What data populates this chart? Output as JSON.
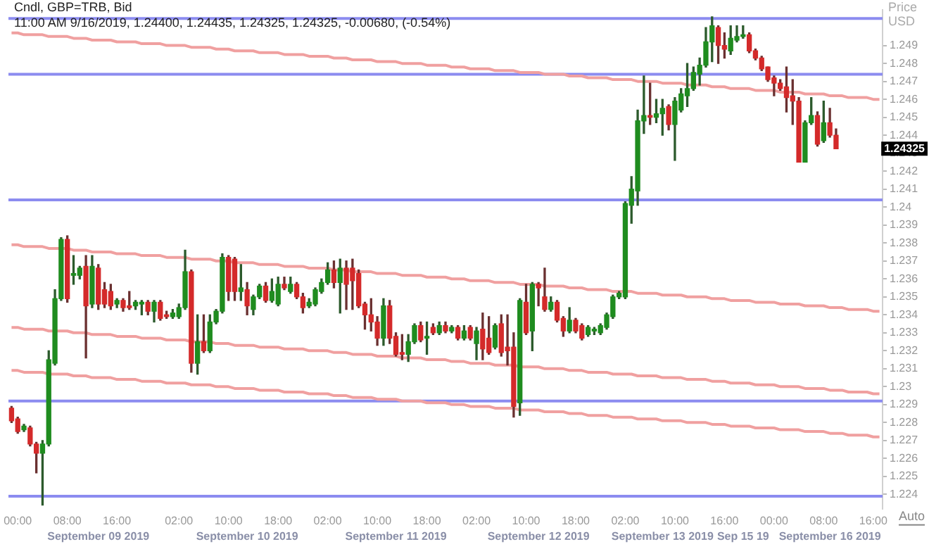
{
  "chart_data": {
    "type": "candlestick",
    "title": "Cndl, GBP=TRB, Bid",
    "subtitle": "11:00 AM 9/16/2019, 1.24400, 1.24435, 1.24325, 1.24325, -0.00680, (-0.54%)",
    "ylabel": "Price USD",
    "categories": [
      null,
      "00:00",
      null,
      null,
      null,
      null,
      null,
      null,
      null,
      "08:00",
      null,
      null,
      null,
      null,
      null,
      null,
      null,
      "16:00",
      null,
      null,
      null,
      null,
      null,
      null,
      null,
      null,
      null,
      "02:00",
      null,
      null,
      null,
      null,
      null,
      null,
      null,
      "10:00",
      null,
      null,
      null,
      null,
      null,
      null,
      null,
      "18:00",
      null,
      null,
      null,
      null,
      null,
      null,
      null,
      "02:00",
      null,
      null,
      null,
      null,
      null,
      null,
      null,
      "10:00",
      null,
      null,
      null,
      null,
      null,
      null,
      null,
      "18:00",
      null,
      null,
      null,
      null,
      null,
      null,
      null,
      "02:00",
      null,
      null,
      null,
      null,
      null,
      null,
      null,
      "10:00",
      null,
      null,
      null,
      null,
      null,
      null,
      null,
      "18:00",
      null,
      null,
      null,
      null,
      null,
      null,
      null,
      "02:00",
      null,
      null,
      null,
      null,
      null,
      null,
      null,
      "10:00",
      null,
      null,
      null,
      null,
      null,
      null,
      null,
      "16:00",
      null,
      null,
      null,
      null,
      null,
      null,
      null,
      "00:00",
      null,
      null,
      null,
      null,
      null,
      null,
      null,
      "08:00",
      null,
      null,
      null,
      null,
      null,
      null,
      null,
      "16:00",
      null
    ],
    "ohlc": [
      [
        1.2288,
        1.2289,
        1.228,
        1.2281
      ],
      [
        1.2282,
        1.2283,
        1.2274,
        1.2275
      ],
      [
        1.2276,
        1.2279,
        1.2275,
        1.2278
      ],
      [
        1.2277,
        1.2278,
        1.2267,
        1.2268
      ],
      [
        1.2268,
        1.2269,
        1.2252,
        1.2263
      ],
      [
        1.2263,
        1.227,
        1.2234,
        1.2268
      ],
      [
        1.2268,
        1.232,
        1.2267,
        1.2315
      ],
      [
        1.2313,
        1.2354,
        1.2312,
        1.2349
      ],
      [
        1.2349,
        1.2383,
        1.2348,
        1.2382
      ],
      [
        1.2382,
        1.2384,
        1.2347,
        1.2349
      ],
      [
        1.2362,
        1.2373,
        1.2357,
        1.2363
      ],
      [
        1.2362,
        1.2367,
        1.236,
        1.2366
      ],
      [
        1.2367,
        1.2373,
        1.2316,
        1.2345
      ],
      [
        1.2346,
        1.2373,
        1.2344,
        1.2367
      ],
      [
        1.2366,
        1.2368,
        1.2343,
        1.2346
      ],
      [
        1.2354,
        1.2358,
        1.2344,
        1.2346
      ],
      [
        1.2353,
        1.2357,
        1.2343,
        1.2345
      ],
      [
        1.2346,
        1.2349,
        1.2344,
        1.2348
      ],
      [
        1.2348,
        1.2349,
        1.2342,
        1.2344
      ],
      [
        1.2345,
        1.2353,
        1.2343,
        1.2344
      ],
      [
        1.2345,
        1.2348,
        1.2343,
        1.2347
      ],
      [
        1.2346,
        1.2348,
        1.234,
        1.2347
      ],
      [
        1.2347,
        1.2348,
        1.234,
        1.2342
      ],
      [
        1.2342,
        1.2348,
        1.2336,
        1.2347
      ],
      [
        1.2347,
        1.2348,
        1.2337,
        1.2338
      ],
      [
        1.234,
        1.2342,
        1.2338,
        1.2339
      ],
      [
        1.2339,
        1.2343,
        1.2338,
        1.2341
      ],
      [
        1.2339,
        1.2346,
        1.2338,
        1.2344
      ],
      [
        1.2344,
        1.2376,
        1.2343,
        1.2364
      ],
      [
        1.2364,
        1.2365,
        1.2308,
        1.2313
      ],
      [
        1.2313,
        1.234,
        1.2307,
        1.2325
      ],
      [
        1.2325,
        1.234,
        1.2319,
        1.232
      ],
      [
        1.232,
        1.234,
        1.2319,
        1.2336
      ],
      [
        1.2336,
        1.2343,
        1.2335,
        1.2342
      ],
      [
        1.2342,
        1.2374,
        1.2341,
        1.2372
      ],
      [
        1.2372,
        1.2373,
        1.2348,
        1.2353
      ],
      [
        1.2371,
        1.2372,
        1.2348,
        1.2353
      ],
      [
        1.2353,
        1.2368,
        1.2348,
        1.2355
      ],
      [
        1.2354,
        1.2358,
        1.234,
        1.2345
      ],
      [
        1.2343,
        1.2351,
        1.234,
        1.235
      ],
      [
        1.235,
        1.2357,
        1.2349,
        1.2356
      ],
      [
        1.2356,
        1.2358,
        1.2347,
        1.2348
      ],
      [
        1.2348,
        1.236,
        1.2347,
        1.2353
      ],
      [
        1.2346,
        1.2361,
        1.2345,
        1.2357
      ],
      [
        1.2357,
        1.2361,
        1.2354,
        1.2355
      ],
      [
        1.2353,
        1.2361,
        1.2352,
        1.2357
      ],
      [
        1.2357,
        1.2358,
        1.2349,
        1.235
      ],
      [
        1.235,
        1.2352,
        1.2341,
        1.2344
      ],
      [
        1.2345,
        1.2349,
        1.2344,
        1.2347
      ],
      [
        1.2346,
        1.2355,
        1.2345,
        1.2354
      ],
      [
        1.2353,
        1.236,
        1.2352,
        1.2358
      ],
      [
        1.2358,
        1.2369,
        1.2357,
        1.2365
      ],
      [
        1.2365,
        1.237,
        1.2355,
        1.2358
      ],
      [
        1.2358,
        1.2371,
        1.2341,
        1.2366
      ],
      [
        1.2366,
        1.237,
        1.2343,
        1.2357
      ],
      [
        1.2366,
        1.2371,
        1.2343,
        1.2359
      ],
      [
        1.2363,
        1.2365,
        1.2344,
        1.2345
      ],
      [
        1.2346,
        1.2347,
        1.2332,
        1.234
      ],
      [
        1.234,
        1.2349,
        1.2331,
        1.2336
      ],
      [
        1.2336,
        1.2339,
        1.2323,
        1.2327
      ],
      [
        1.2327,
        1.2349,
        1.2323,
        1.2345
      ],
      [
        1.2345,
        1.2348,
        1.2324,
        1.2327
      ],
      [
        1.2328,
        1.233,
        1.2317,
        1.2318
      ],
      [
        1.2319,
        1.2329,
        1.2315,
        1.2318
      ],
      [
        1.2318,
        1.2329,
        1.2314,
        1.2325
      ],
      [
        1.2325,
        1.2335,
        1.2324,
        1.2334
      ],
      [
        1.2334,
        1.2336,
        1.2325,
        1.2326
      ],
      [
        1.2327,
        1.2336,
        1.2318,
        1.2328
      ],
      [
        1.2333,
        1.2335,
        1.2329,
        1.233
      ],
      [
        1.233,
        1.2336,
        1.2329,
        1.2334
      ],
      [
        1.2334,
        1.2336,
        1.233,
        1.2331
      ],
      [
        1.2331,
        1.2334,
        1.233,
        1.2333
      ],
      [
        1.2333,
        1.2334,
        1.2326,
        1.2327
      ],
      [
        1.2327,
        1.2334,
        1.2326,
        1.2331
      ],
      [
        1.2333,
        1.2334,
        1.2326,
        1.2327
      ],
      [
        1.2324,
        1.2333,
        1.2315,
        1.2331
      ],
      [
        1.2332,
        1.2341,
        1.2315,
        1.2321
      ],
      [
        1.2327,
        1.2339,
        1.2318,
        1.2319
      ],
      [
        1.2322,
        1.2335,
        1.2321,
        1.2334
      ],
      [
        1.2335,
        1.234,
        1.2317,
        1.2319
      ],
      [
        1.2322,
        1.234,
        1.2312,
        1.232
      ],
      [
        1.2322,
        1.233,
        1.2283,
        1.2289
      ],
      [
        1.2291,
        1.2349,
        1.2284,
        1.2348
      ],
      [
        1.2347,
        1.2357,
        1.2329,
        1.233
      ],
      [
        1.2331,
        1.2358,
        1.232,
        1.2357
      ],
      [
        1.2357,
        1.2358,
        1.2345,
        1.2355
      ],
      [
        1.235,
        1.2366,
        1.2342,
        1.2343
      ],
      [
        1.2343,
        1.235,
        1.2342,
        1.2347
      ],
      [
        1.2347,
        1.2348,
        1.2336,
        1.2337
      ],
      [
        1.2338,
        1.2339,
        1.2328,
        1.2331
      ],
      [
        1.2331,
        1.2344,
        1.233,
        1.2337
      ],
      [
        1.2337,
        1.2338,
        1.233,
        1.2331
      ],
      [
        1.2334,
        1.2335,
        1.2326,
        1.2327
      ],
      [
        1.2329,
        1.2334,
        1.2328,
        1.2333
      ],
      [
        1.2331,
        1.2333,
        1.2329,
        1.2332
      ],
      [
        1.233,
        1.2335,
        1.2329,
        1.2334
      ],
      [
        1.2333,
        1.2341,
        1.2332,
        1.234
      ],
      [
        1.2339,
        1.2351,
        1.2338,
        1.235
      ],
      [
        1.235,
        1.2353,
        1.2349,
        1.2352
      ],
      [
        1.235,
        1.2403,
        1.2349,
        1.2402
      ],
      [
        1.2401,
        1.2417,
        1.2391,
        1.241
      ],
      [
        1.2409,
        1.2454,
        1.2401,
        1.2448
      ],
      [
        1.2448,
        1.2473,
        1.2441,
        1.2451
      ],
      [
        1.2451,
        1.2469,
        1.2446,
        1.245
      ],
      [
        1.245,
        1.246,
        1.2447,
        1.2452
      ],
      [
        1.2452,
        1.246,
        1.244,
        1.2455
      ],
      [
        1.2456,
        1.2457,
        1.2443,
        1.2446
      ],
      [
        1.2446,
        1.2461,
        1.2426,
        1.2459
      ],
      [
        1.2454,
        1.2466,
        1.2453,
        1.2463
      ],
      [
        1.2462,
        1.248,
        1.2456,
        1.2466
      ],
      [
        1.2466,
        1.2478,
        1.2465,
        1.2475
      ],
      [
        1.2474,
        1.2483,
        1.2468,
        1.2479
      ],
      [
        1.2479,
        1.25,
        1.2478,
        1.2492
      ],
      [
        1.2492,
        1.2506,
        1.2481,
        1.2501
      ],
      [
        1.25,
        1.2501,
        1.248,
        1.249
      ],
      [
        1.249,
        1.2497,
        1.2483,
        1.2488
      ],
      [
        1.2487,
        1.2501,
        1.2485,
        1.2494
      ],
      [
        1.2493,
        1.2501,
        1.2492,
        1.2495
      ],
      [
        1.2495,
        1.2501,
        1.2494,
        1.2496
      ],
      [
        1.2496,
        1.2497,
        1.2486,
        1.2487
      ],
      [
        1.2487,
        1.2488,
        1.2482,
        1.2483
      ],
      [
        1.2483,
        1.2484,
        1.2476,
        1.2477
      ],
      [
        1.2478,
        1.2478,
        1.247,
        1.2471
      ],
      [
        1.2472,
        1.2473,
        1.2462,
        1.2469
      ],
      [
        1.2469,
        1.2471,
        1.2465,
        1.2466
      ],
      [
        1.2467,
        1.2478,
        1.2453,
        1.2461
      ],
      [
        1.2462,
        1.2471,
        1.2446,
        1.2459
      ],
      [
        1.2459,
        1.2461,
        1.2425,
        1.2425
      ],
      [
        1.2425,
        1.2448,
        1.2425,
        1.2447
      ],
      [
        1.2447,
        1.2461,
        1.2446,
        1.2451
      ],
      [
        1.2451,
        1.2453,
        1.2434,
        1.2435
      ],
      [
        1.2437,
        1.2459,
        1.2436,
        1.2447
      ],
      [
        1.2447,
        1.2455,
        1.2439,
        1.244
      ],
      [
        1.244,
        1.24435,
        1.24325,
        1.24325
      ],
      null,
      null,
      null,
      null,
      null,
      null,
      null
    ],
    "series": [
      {
        "type": "line",
        "color": "#f0a0a0",
        "values": [
          1.2497,
          1.2497,
          1.2496,
          1.2496,
          1.2496,
          1.2496,
          1.2495,
          1.2495,
          1.2495,
          1.2495,
          1.2494,
          1.2494,
          1.2494,
          1.2493,
          1.2493,
          1.2493,
          1.2493,
          1.2492,
          1.2492,
          1.2492,
          1.2492,
          1.2491,
          1.2491,
          1.2491,
          1.2491,
          1.249,
          1.249,
          1.249,
          1.249,
          1.2489,
          1.2489,
          1.2489,
          1.2489,
          1.2488,
          1.2488,
          1.2488,
          1.2487,
          1.2487,
          1.2487,
          1.2487,
          1.2486,
          1.2486,
          1.2486,
          1.2486,
          1.2485,
          1.2485,
          1.2485,
          1.2485,
          1.2484,
          1.2484,
          1.2484,
          1.2484,
          1.2483,
          1.2483,
          1.2483,
          1.2482,
          1.2482,
          1.2482,
          1.2482,
          1.2481,
          1.2481,
          1.2481,
          1.2481,
          1.248,
          1.248,
          1.248,
          1.248,
          1.2479,
          1.2479,
          1.2479,
          1.2479,
          1.2478,
          1.2478,
          1.2478,
          1.2477,
          1.2477,
          1.2477,
          1.2477,
          1.2476,
          1.2476,
          1.2476,
          1.2476,
          1.2475,
          1.2475,
          1.2475,
          1.2475,
          1.2474,
          1.2474,
          1.2474,
          1.2474,
          1.2473,
          1.2473,
          1.2473,
          1.2472,
          1.2472,
          1.2472,
          1.2472,
          1.2471,
          1.2471,
          1.2471,
          1.2471,
          1.247,
          1.247,
          1.247,
          1.247,
          1.2469,
          1.2469,
          1.2469,
          1.2469,
          1.2468,
          1.2468,
          1.2468,
          1.2468,
          1.2467,
          1.2467,
          1.2467,
          1.2466,
          1.2466,
          1.2466,
          1.2466,
          1.2465,
          1.2465,
          1.2465,
          1.2465,
          1.2464,
          1.2464,
          1.2464,
          1.2464,
          1.2463,
          1.2463,
          1.2463,
          1.2463,
          1.2462,
          1.2462,
          1.2462,
          1.2461,
          1.2461,
          1.2461,
          1.2461,
          1.246,
          1.246
        ]
      },
      {
        "type": "line",
        "color": "#f0a0a0",
        "values": [
          1.2379,
          1.2379,
          1.2378,
          1.2378,
          1.2378,
          1.2378,
          1.2377,
          1.2377,
          1.2377,
          1.2377,
          1.2376,
          1.2376,
          1.2376,
          1.2375,
          1.2375,
          1.2375,
          1.2375,
          1.2374,
          1.2374,
          1.2374,
          1.2374,
          1.2373,
          1.2373,
          1.2373,
          1.2373,
          1.2372,
          1.2372,
          1.2372,
          1.2372,
          1.2371,
          1.2371,
          1.2371,
          1.2371,
          1.237,
          1.237,
          1.237,
          1.2369,
          1.2369,
          1.2369,
          1.2369,
          1.2368,
          1.2368,
          1.2368,
          1.2368,
          1.2367,
          1.2367,
          1.2367,
          1.2367,
          1.2366,
          1.2366,
          1.2366,
          1.2366,
          1.2365,
          1.2365,
          1.2365,
          1.2364,
          1.2364,
          1.2364,
          1.2364,
          1.2363,
          1.2363,
          1.2363,
          1.2363,
          1.2362,
          1.2362,
          1.2362,
          1.2362,
          1.2361,
          1.2361,
          1.2361,
          1.2361,
          1.236,
          1.236,
          1.236,
          1.2359,
          1.2359,
          1.2359,
          1.2359,
          1.2358,
          1.2358,
          1.2358,
          1.2358,
          1.2357,
          1.2357,
          1.2357,
          1.2357,
          1.2356,
          1.2356,
          1.2356,
          1.2356,
          1.2355,
          1.2355,
          1.2355,
          1.2354,
          1.2354,
          1.2354,
          1.2354,
          1.2353,
          1.2353,
          1.2353,
          1.2353,
          1.2352,
          1.2352,
          1.2352,
          1.2352,
          1.2351,
          1.2351,
          1.2351,
          1.2351,
          1.235,
          1.235,
          1.235,
          1.235,
          1.2349,
          1.2349,
          1.2349,
          1.2348,
          1.2348,
          1.2348,
          1.2348,
          1.2347,
          1.2347,
          1.2347,
          1.2347,
          1.2346,
          1.2346,
          1.2346,
          1.2346,
          1.2345,
          1.2345,
          1.2345,
          1.2345,
          1.2344,
          1.2344,
          1.2344,
          1.2343,
          1.2343,
          1.2343,
          1.2343,
          1.2342,
          1.2342
        ]
      },
      {
        "type": "line",
        "color": "#f0a0a0",
        "values": [
          1.2333,
          1.2333,
          1.2332,
          1.2332,
          1.2332,
          1.2332,
          1.2331,
          1.2331,
          1.2331,
          1.2331,
          1.233,
          1.233,
          1.233,
          1.2329,
          1.2329,
          1.2329,
          1.2329,
          1.2328,
          1.2328,
          1.2328,
          1.2328,
          1.2327,
          1.2327,
          1.2327,
          1.2327,
          1.2326,
          1.2326,
          1.2326,
          1.2326,
          1.2325,
          1.2325,
          1.2325,
          1.2325,
          1.2324,
          1.2324,
          1.2324,
          1.2323,
          1.2323,
          1.2323,
          1.2323,
          1.2322,
          1.2322,
          1.2322,
          1.2322,
          1.2321,
          1.2321,
          1.2321,
          1.2321,
          1.232,
          1.232,
          1.232,
          1.232,
          1.2319,
          1.2319,
          1.2319,
          1.2318,
          1.2318,
          1.2318,
          1.2318,
          1.2317,
          1.2317,
          1.2317,
          1.2317,
          1.2316,
          1.2316,
          1.2316,
          1.2316,
          1.2315,
          1.2315,
          1.2315,
          1.2315,
          1.2314,
          1.2314,
          1.2314,
          1.2313,
          1.2313,
          1.2313,
          1.2313,
          1.2312,
          1.2312,
          1.2312,
          1.2312,
          1.2311,
          1.2311,
          1.2311,
          1.2311,
          1.231,
          1.231,
          1.231,
          1.231,
          1.2309,
          1.2309,
          1.2309,
          1.2308,
          1.2308,
          1.2308,
          1.2308,
          1.2307,
          1.2307,
          1.2307,
          1.2307,
          1.2306,
          1.2306,
          1.2306,
          1.2306,
          1.2305,
          1.2305,
          1.2305,
          1.2305,
          1.2304,
          1.2304,
          1.2304,
          1.2304,
          1.2303,
          1.2303,
          1.2303,
          1.2302,
          1.2302,
          1.2302,
          1.2302,
          1.2301,
          1.2301,
          1.2301,
          1.2301,
          1.23,
          1.23,
          1.23,
          1.23,
          1.2299,
          1.2299,
          1.2299,
          1.2299,
          1.2298,
          1.2298,
          1.2298,
          1.2297,
          1.2297,
          1.2297,
          1.2297,
          1.2296,
          1.2296
        ]
      },
      {
        "type": "line",
        "color": "#f0a0a0",
        "values": [
          1.2309,
          1.2309,
          1.2308,
          1.2308,
          1.2308,
          1.2308,
          1.2307,
          1.2307,
          1.2307,
          1.2307,
          1.2306,
          1.2306,
          1.2306,
          1.2305,
          1.2305,
          1.2305,
          1.2305,
          1.2304,
          1.2304,
          1.2304,
          1.2304,
          1.2303,
          1.2303,
          1.2303,
          1.2303,
          1.2302,
          1.2302,
          1.2302,
          1.2302,
          1.2301,
          1.2301,
          1.2301,
          1.2301,
          1.23,
          1.23,
          1.23,
          1.2299,
          1.2299,
          1.2299,
          1.2299,
          1.2298,
          1.2298,
          1.2298,
          1.2298,
          1.2297,
          1.2297,
          1.2297,
          1.2297,
          1.2296,
          1.2296,
          1.2296,
          1.2296,
          1.2295,
          1.2295,
          1.2295,
          1.2294,
          1.2294,
          1.2294,
          1.2294,
          1.2293,
          1.2293,
          1.2293,
          1.2293,
          1.2292,
          1.2292,
          1.2292,
          1.2292,
          1.2291,
          1.2291,
          1.2291,
          1.2291,
          1.229,
          1.229,
          1.229,
          1.2289,
          1.2289,
          1.2289,
          1.2289,
          1.2288,
          1.2288,
          1.2288,
          1.2288,
          1.2287,
          1.2287,
          1.2287,
          1.2287,
          1.2286,
          1.2286,
          1.2286,
          1.2286,
          1.2285,
          1.2285,
          1.2285,
          1.2284,
          1.2284,
          1.2284,
          1.2284,
          1.2283,
          1.2283,
          1.2283,
          1.2283,
          1.2282,
          1.2282,
          1.2282,
          1.2282,
          1.2281,
          1.2281,
          1.2281,
          1.2281,
          1.228,
          1.228,
          1.228,
          1.228,
          1.2279,
          1.2279,
          1.2279,
          1.2278,
          1.2278,
          1.2278,
          1.2278,
          1.2277,
          1.2277,
          1.2277,
          1.2277,
          1.2276,
          1.2276,
          1.2276,
          1.2276,
          1.2275,
          1.2275,
          1.2275,
          1.2275,
          1.2274,
          1.2274,
          1.2274,
          1.2273,
          1.2273,
          1.2273,
          1.2273,
          1.2272,
          1.2272
        ]
      }
    ],
    "ref_lines": [
      {
        "axis": "y",
        "value": 1.2505,
        "color": "#8c8cf0"
      },
      {
        "axis": "y",
        "value": 1.2474,
        "color": "#8c8cf0"
      },
      {
        "axis": "y",
        "value": 1.2404,
        "color": "#8c8cf0"
      },
      {
        "axis": "y",
        "value": 1.2292,
        "color": "#8c8cf0"
      },
      {
        "axis": "y",
        "value": 1.2239,
        "color": "#8c8cf0"
      }
    ],
    "ylim": [
      1.2232,
      1.251
    ],
    "yticks": [
      1.224,
      1.225,
      1.226,
      1.227,
      1.228,
      1.229,
      1.23,
      1.231,
      1.232,
      1.233,
      1.234,
      1.235,
      1.236,
      1.237,
      1.238,
      1.239,
      1.24,
      1.241,
      1.242,
      1.243,
      1.244,
      1.245,
      1.246,
      1.247,
      1.248,
      1.249
    ],
    "annotations": [
      "1.24325",
      "Auto",
      "September 09 2019",
      "September 10 2019",
      "September 11 2019",
      "September 12 2019",
      "September 13 2019",
      "Sep 15 19",
      "September 16 2019"
    ],
    "grid": false,
    "legend": false
  }
}
